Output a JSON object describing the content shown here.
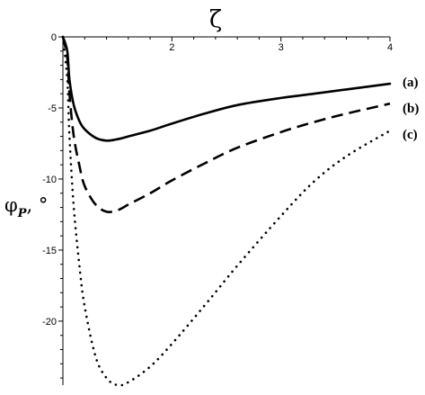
{
  "chart_data": {
    "type": "line",
    "xlabel": "ζ",
    "ylabel": "φ",
    "ylabel_subscript": "P",
    "ylabel_suffix": ", °",
    "xlim": [
      1.0,
      4.0
    ],
    "ylim": [
      -24.5,
      0
    ],
    "x_ticks": [
      2,
      3,
      4
    ],
    "y_ticks": [
      0,
      -5,
      -10,
      -15,
      -20
    ],
    "x_axis_position": "top",
    "grid": false,
    "series": [
      {
        "name": "(a)",
        "style": "solid",
        "color": "#000000",
        "x": [
          1.04,
          1.06,
          1.1,
          1.15,
          1.2,
          1.3,
          1.4,
          1.5,
          1.6,
          1.8,
          2.0,
          2.3,
          2.6,
          3.0,
          3.3,
          3.6,
          4.0
        ],
        "y": [
          -1.0,
          -3.0,
          -4.8,
          -5.9,
          -6.5,
          -7.1,
          -7.3,
          -7.2,
          -7.0,
          -6.6,
          -6.1,
          -5.4,
          -4.8,
          -4.3,
          -4.0,
          -3.7,
          -3.3
        ]
      },
      {
        "name": "(b)",
        "style": "dashed",
        "color": "#000000",
        "x": [
          1.04,
          1.06,
          1.1,
          1.15,
          1.2,
          1.3,
          1.4,
          1.5,
          1.6,
          1.8,
          2.0,
          2.3,
          2.6,
          3.0,
          3.3,
          3.6,
          4.0
        ],
        "y": [
          -1.5,
          -4.0,
          -7.0,
          -9.0,
          -10.5,
          -11.8,
          -12.3,
          -12.2,
          -11.8,
          -11.0,
          -10.1,
          -8.9,
          -7.8,
          -6.7,
          -6.0,
          -5.4,
          -4.7
        ]
      },
      {
        "name": "(c)",
        "style": "dotted",
        "color": "#000000",
        "x": [
          1.04,
          1.06,
          1.1,
          1.15,
          1.2,
          1.3,
          1.4,
          1.5,
          1.6,
          1.8,
          2.0,
          2.3,
          2.6,
          3.0,
          3.3,
          3.6,
          4.0
        ],
        "y": [
          -3.0,
          -7.0,
          -12.0,
          -16.0,
          -19.0,
          -22.5,
          -24.0,
          -24.5,
          -24.3,
          -23.2,
          -21.6,
          -18.9,
          -16.1,
          -12.6,
          -10.2,
          -8.4,
          -6.6
        ]
      }
    ]
  }
}
